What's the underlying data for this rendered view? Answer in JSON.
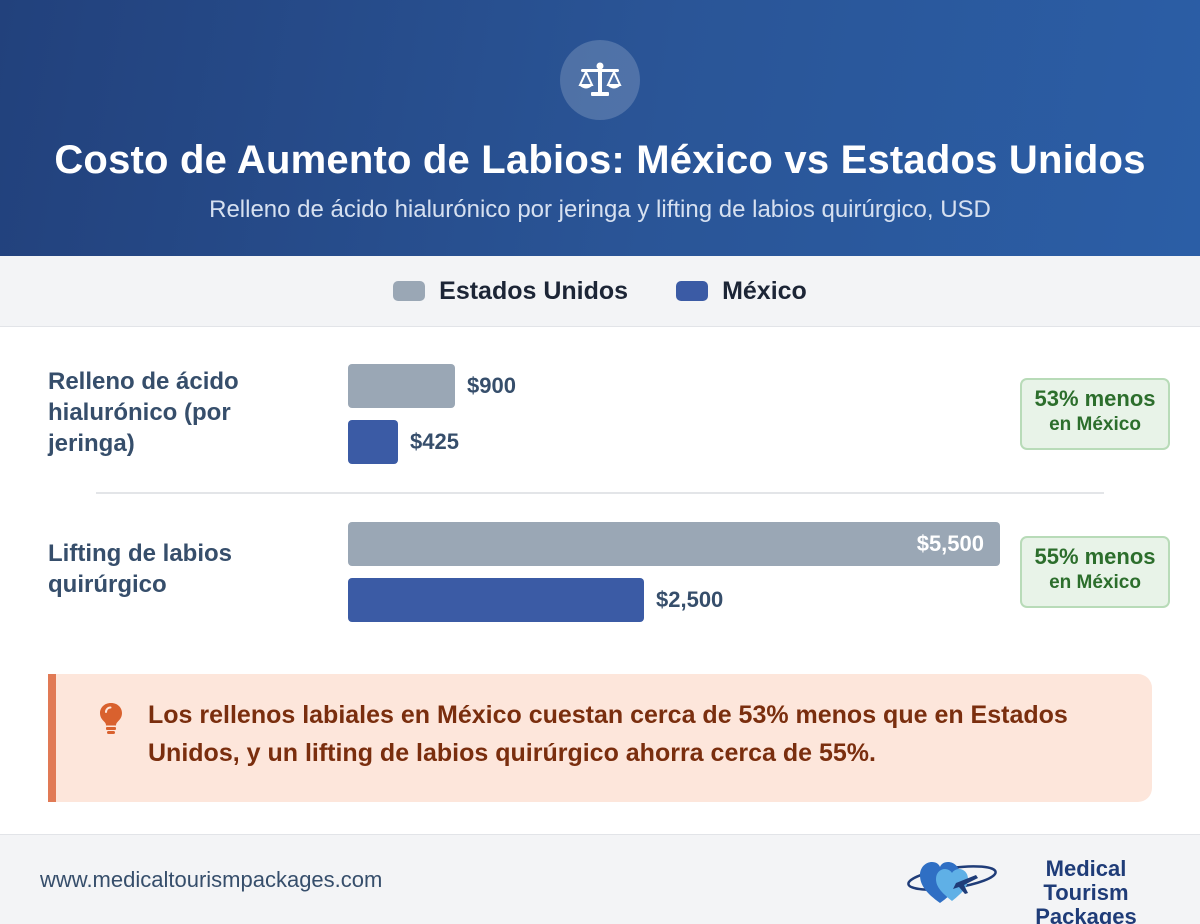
{
  "header": {
    "icon": "scale-balance-icon",
    "title": "Costo de Aumento de Labios: México vs Estados Unidos",
    "subtitle": "Relleno de ácido hialurónico por jeringa y lifting de labios quirúrgico, USD"
  },
  "colors": {
    "us": "#9aa7b5",
    "mexico": "#3b5ba5",
    "badge_green": "#2c6e2c",
    "callout_accent": "#e17a55"
  },
  "chart_data": {
    "type": "bar",
    "orientation": "horizontal",
    "categories": [
      "Relleno de ácido hialurónico (por jeringa)",
      "Lifting de labios quirúrgico"
    ],
    "series": [
      {
        "name": "Estados Unidos",
        "values": [
          900,
          5500
        ],
        "labels": [
          "$900",
          "$5,500"
        ]
      },
      {
        "name": "México",
        "values": [
          425,
          2500
        ],
        "labels": [
          "$425",
          "$2,500"
        ]
      }
    ],
    "xlim": [
      0,
      5500
    ],
    "grid": false,
    "legend_position": "top-center",
    "savings": [
      {
        "top": "53% menos",
        "bottom": "en México"
      },
      {
        "top": "55% menos",
        "bottom": "en México"
      }
    ]
  },
  "callout": {
    "icon": "lightbulb-icon",
    "text": "Los rellenos labiales en México cuestan cerca de 53% menos que en Estados Unidos, y un lifting de labios quirúrgico ahorra cerca de 55%."
  },
  "footer": {
    "url": "www.medicaltourismpackages.com",
    "logo_line1": "Medical Tourism",
    "logo_line2": "Packages"
  }
}
